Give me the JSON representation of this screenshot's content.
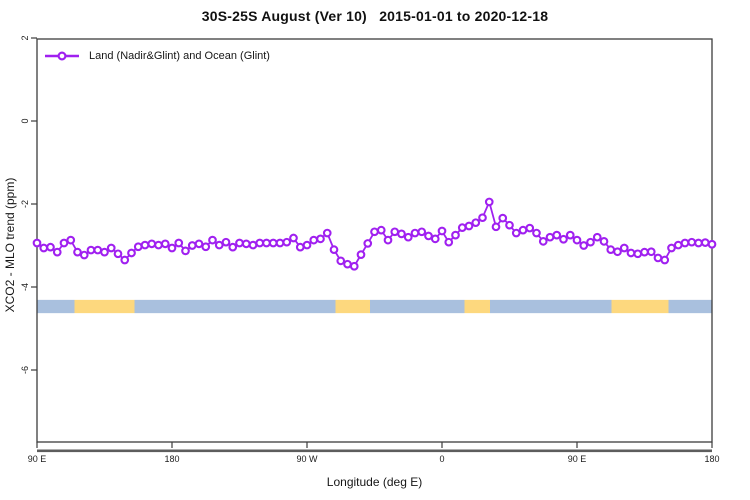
{
  "chart_data": {
    "type": "line",
    "title": "30S-25S August (Ver 10)   2015-01-01 to 2020-12-18",
    "xlabel": "Longitude (deg E)",
    "ylabel": "XCO2 - MLO trend (ppm)",
    "xlim": [
      90,
      540
    ],
    "ylim": [
      -8,
      2
    ],
    "grid": "off",
    "legend": {
      "position": "top-left"
    },
    "x_ticks": [
      {
        "value": 90,
        "label": "90 E"
      },
      {
        "value": 180,
        "label": "180"
      },
      {
        "value": 270,
        "label": "90 W"
      },
      {
        "value": 360,
        "label": "0"
      },
      {
        "value": 450,
        "label": "90 E"
      },
      {
        "value": 540,
        "label": "180"
      }
    ],
    "y_ticks": [
      {
        "value": 2,
        "label": "2"
      },
      {
        "value": 0,
        "label": "0"
      },
      {
        "value": -2,
        "label": "-2"
      },
      {
        "value": -4,
        "label": "-4"
      },
      {
        "value": -6,
        "label": "-6"
      }
    ],
    "series": [
      {
        "name": "Land (Nadir&Glint) and Ocean (Glint)",
        "color": "#a020f0",
        "marker": "open-circle",
        "x": [
          90,
          94.5,
          99,
          103.5,
          108,
          112.5,
          117,
          121.5,
          126,
          130.5,
          135,
          139.5,
          144,
          148.5,
          153,
          157.5,
          162,
          166.5,
          171,
          175.5,
          180,
          184.5,
          189,
          193.5,
          198,
          202.5,
          207,
          211.5,
          216,
          220.5,
          225,
          229.5,
          234,
          238.5,
          243,
          247.5,
          252,
          256.5,
          261,
          265.5,
          270,
          274.5,
          279,
          283.5,
          288,
          292.5,
          297,
          301.5,
          306,
          310.5,
          315,
          319.5,
          324,
          328.5,
          333,
          337.5,
          342,
          346.5,
          351,
          355.5,
          360,
          364.5,
          369,
          373.5,
          378,
          382.5,
          387,
          391.5,
          396,
          400.5,
          405,
          409.5,
          414,
          418.5,
          423,
          427.5,
          432,
          436.5,
          441,
          445.5,
          450,
          454.5,
          459,
          463.5,
          468,
          472.5,
          477,
          481.5,
          486,
          490.5,
          495,
          499.5,
          504,
          508.5,
          513,
          517.5,
          522,
          526.5,
          531,
          535.5,
          540
        ],
        "y": [
          -2.94,
          -3.06,
          -3.04,
          -3.16,
          -2.94,
          -2.87,
          -3.16,
          -3.23,
          -3.11,
          -3.11,
          -3.16,
          -3.06,
          -3.2,
          -3.35,
          -3.18,
          -3.03,
          -2.99,
          -2.96,
          -2.99,
          -2.96,
          -3.06,
          -2.94,
          -3.13,
          -3.0,
          -2.96,
          -3.03,
          -2.87,
          -2.99,
          -2.92,
          -3.04,
          -2.94,
          -2.96,
          -2.99,
          -2.94,
          -2.94,
          -2.94,
          -2.94,
          -2.92,
          -2.82,
          -3.04,
          -2.99,
          -2.87,
          -2.84,
          -2.7,
          -3.1,
          -3.37,
          -3.45,
          -3.5,
          -3.22,
          -2.95,
          -2.67,
          -2.63,
          -2.87,
          -2.67,
          -2.72,
          -2.8,
          -2.7,
          -2.67,
          -2.77,
          -2.84,
          -2.65,
          -2.92,
          -2.75,
          -2.57,
          -2.53,
          -2.45,
          -2.33,
          -1.95,
          -2.55,
          -2.34,
          -2.51,
          -2.7,
          -2.63,
          -2.58,
          -2.7,
          -2.9,
          -2.8,
          -2.75,
          -2.85,
          -2.75,
          -2.87,
          -3.0,
          -2.92,
          -2.8,
          -2.9,
          -3.1,
          -3.15,
          -3.06,
          -3.18,
          -3.2,
          -3.16,
          -3.15,
          -3.3,
          -3.35,
          -3.06,
          -2.99,
          -2.94,
          -2.92,
          -2.94,
          -2.93,
          -2.97
        ]
      }
    ],
    "surface_band": {
      "value_range": [
        -4.63,
        -4.31
      ],
      "colors": {
        "ocean": "#a9c0de",
        "land": "#fdd87e"
      },
      "segments": [
        {
          "from_lon": 90,
          "to_lon": 115,
          "surface": "ocean"
        },
        {
          "from_lon": 115,
          "to_lon": 155,
          "surface": "land"
        },
        {
          "from_lon": 155,
          "to_lon": 289,
          "surface": "ocean"
        },
        {
          "from_lon": 289,
          "to_lon": 312,
          "surface": "land"
        },
        {
          "from_lon": 312,
          "to_lon": 375,
          "surface": "ocean"
        },
        {
          "from_lon": 375,
          "to_lon": 392,
          "surface": "land"
        },
        {
          "from_lon": 392,
          "to_lon": 473,
          "surface": "ocean"
        },
        {
          "from_lon": 473,
          "to_lon": 511,
          "surface": "land"
        },
        {
          "from_lon": 511,
          "to_lon": 540,
          "surface": "ocean"
        }
      ]
    }
  }
}
